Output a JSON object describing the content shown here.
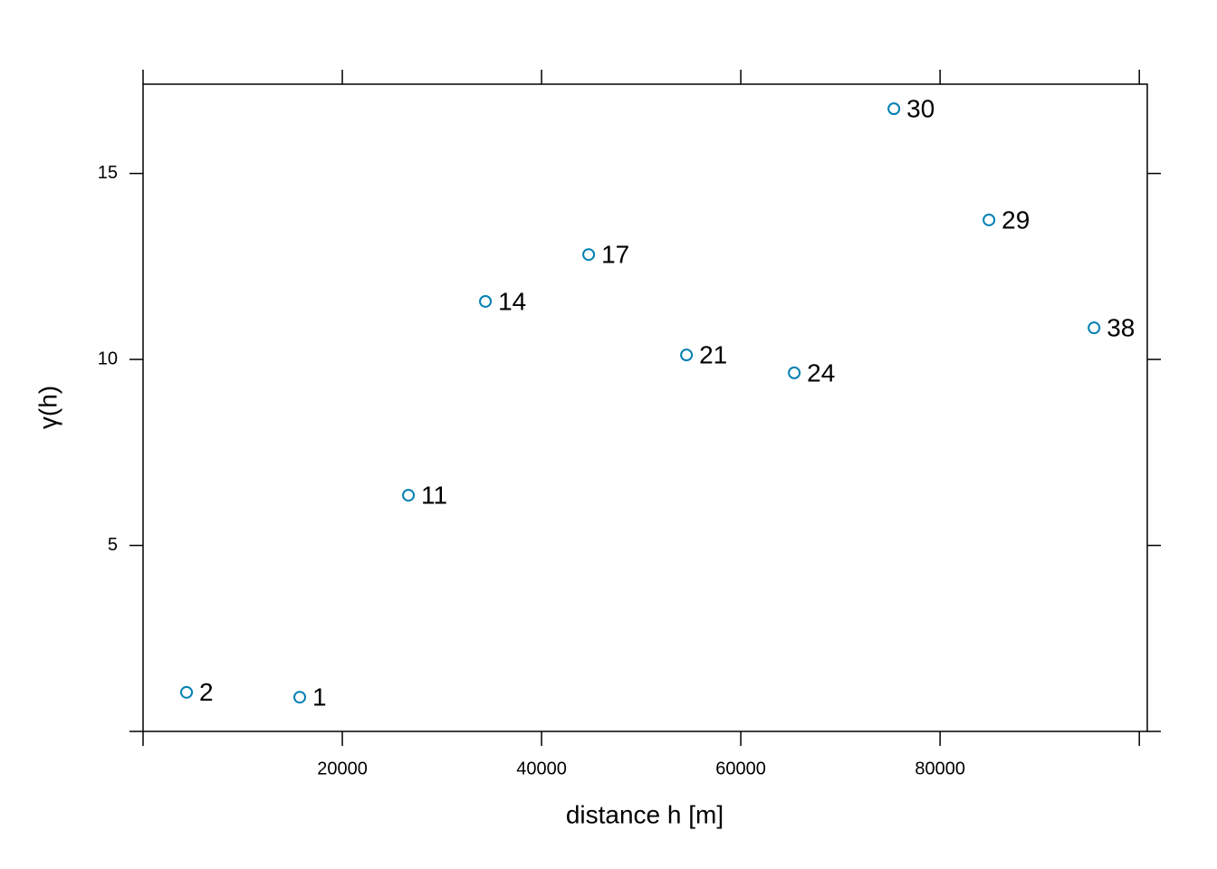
{
  "chart_data": {
    "type": "scatter",
    "x_label": "distance h [m]",
    "y_label": "γ(h)",
    "x": [
      4364,
      15727,
      26636,
      34364,
      44727,
      54545,
      65364,
      75364,
      84909,
      95455
    ],
    "values": [
      1.05,
      0.92,
      6.35,
      11.56,
      12.82,
      10.12,
      9.64,
      16.74,
      13.75,
      10.85
    ],
    "point_labels": [
      2,
      1,
      11,
      14,
      17,
      21,
      24,
      30,
      29,
      38
    ],
    "color": "#0080b3",
    "xlim": [
      0,
      100800
    ],
    "ylim": [
      0,
      17.4
    ],
    "xticks": [
      {
        "value": 0,
        "label": null
      },
      20000,
      40000,
      60000,
      80000,
      {
        "value": 100000,
        "label": null
      }
    ],
    "yticks": [
      {
        "value": 0,
        "label": null
      },
      5,
      10,
      15
    ],
    "grid": false
  }
}
